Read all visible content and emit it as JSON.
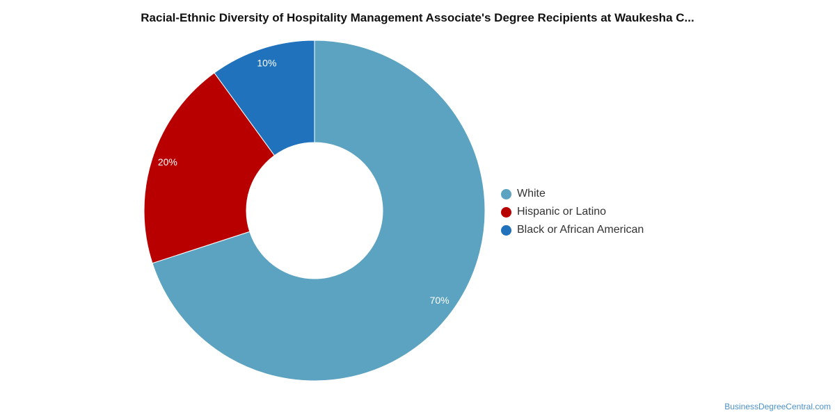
{
  "chart_data": {
    "type": "pie",
    "donut": true,
    "title": "Racial-Ethnic Diversity of Hospitality Management Associate's Degree Recipients at Waukesha C...",
    "categories": [
      "White",
      "Hispanic or Latino",
      "Black or African American"
    ],
    "values": [
      70,
      20,
      10
    ],
    "value_labels": [
      "70%",
      "20%",
      "10%"
    ],
    "colors": [
      "#5ba3c0",
      "#b80000",
      "#1f72bb"
    ],
    "legend_position": "right"
  },
  "watermark": "BusinessDegreeCentral.com"
}
